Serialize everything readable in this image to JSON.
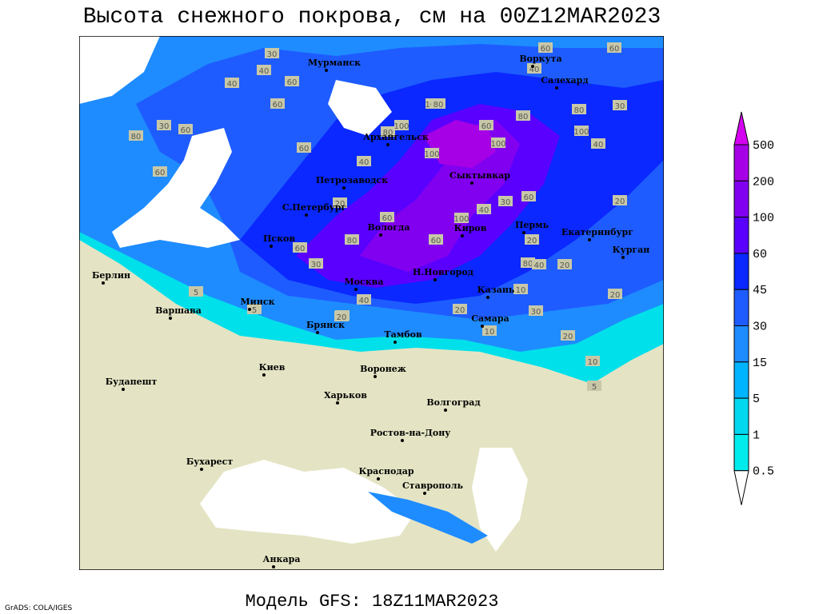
{
  "title": "Высота снежного покрова, см на 00Z12MAR2023",
  "footer": "Модель GFS: 18Z11MAR2023",
  "credit": "GrADS: COLA/IGES",
  "cities": [
    "Мурманск",
    "Воркута",
    "Салехард",
    "Архангельск",
    "Сыктывкар",
    "Петрозаводск",
    "С.Петербург",
    "Вологда",
    "Киров",
    "Пермь",
    "Екатеринбург",
    "Курган",
    "Псков",
    "Н.Новгород",
    "Казань",
    "Москва",
    "Минск",
    "Берлин",
    "Варшава",
    "Брянск",
    "Тамбов",
    "Самара",
    "Киев",
    "Воронеж",
    "Харьков",
    "Будапешт",
    "Волгоград",
    "Ростов-на-Дону",
    "Бухарест",
    "Краснодар",
    "Ставрополь",
    "Анкара"
  ],
  "contour_labels": [
    30,
    40,
    60,
    40,
    60,
    30,
    60,
    80,
    60,
    20,
    60,
    30,
    40,
    40,
    80,
    100,
    100,
    80,
    40,
    60,
    100,
    60,
    100,
    80,
    80,
    100,
    30,
    40,
    40,
    20,
    80,
    60,
    60,
    20,
    100,
    40,
    60,
    30,
    60,
    60,
    80,
    20,
    40,
    20,
    10,
    20,
    30,
    10,
    5,
    10,
    20,
    20,
    5,
    5
  ],
  "colorbar": {
    "levels": [
      500,
      200,
      100,
      60,
      45,
      30,
      15,
      5,
      1,
      0.5
    ],
    "colors": [
      "#d400f0",
      "#a600e6",
      "#8200f0",
      "#5a00ff",
      "#0a28ff",
      "#1e5cff",
      "#1e8cff",
      "#00b4ff",
      "#00d8f0",
      "#00ecec",
      "#ffffff"
    ]
  }
}
